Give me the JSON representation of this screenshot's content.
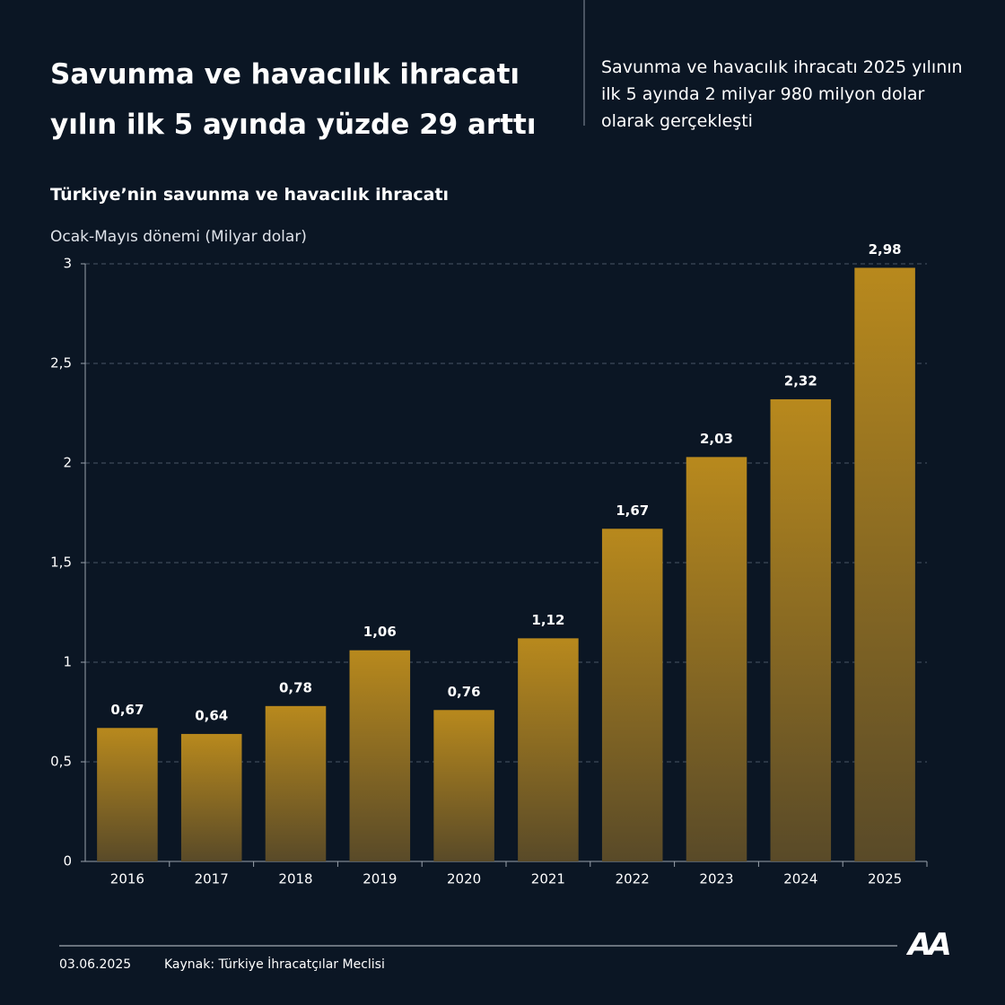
{
  "chart_data": {
    "type": "bar",
    "title": "Savunma ve havacılık ihracatı yılın ilk 5 ayında yüzde 29 arttı",
    "subtitle": "Savunma ve havacılık ihracatı 2025 yılının ilk 5 ayında 2 milyar 980 milyon dolar olarak gerçekleşti",
    "chart_title": "Türkiye’nin savunma ve havacılık ihracatı",
    "y_label": "Ocak-Mayıs dönemi (Milyar dolar)",
    "categories": [
      "2016",
      "2017",
      "2018",
      "2019",
      "2020",
      "2021",
      "2022",
      "2023",
      "2024",
      "2025"
    ],
    "values": [
      0.67,
      0.64,
      0.78,
      1.06,
      0.76,
      1.12,
      1.67,
      2.03,
      2.32,
      2.98
    ],
    "value_labels": [
      "0,67",
      "0,64",
      "0,78",
      "1,06",
      "0,76",
      "1,12",
      "1,67",
      "2,03",
      "2,32",
      "2,98"
    ],
    "color": "#b8891d",
    "ylim": [
      0,
      3
    ],
    "yticks": [
      0,
      {
        "value": 0.5,
        "label": "0,5"
      },
      1,
      {
        "value": 1.5,
        "label": "1,5"
      },
      2,
      {
        "value": 2.5,
        "label": "2,5"
      },
      3
    ],
    "grid": true
  },
  "footer": {
    "date": "03.06.2025",
    "source": "Kaynak: Türkiye İhracatçılar Meclisi",
    "logo": "AA"
  }
}
